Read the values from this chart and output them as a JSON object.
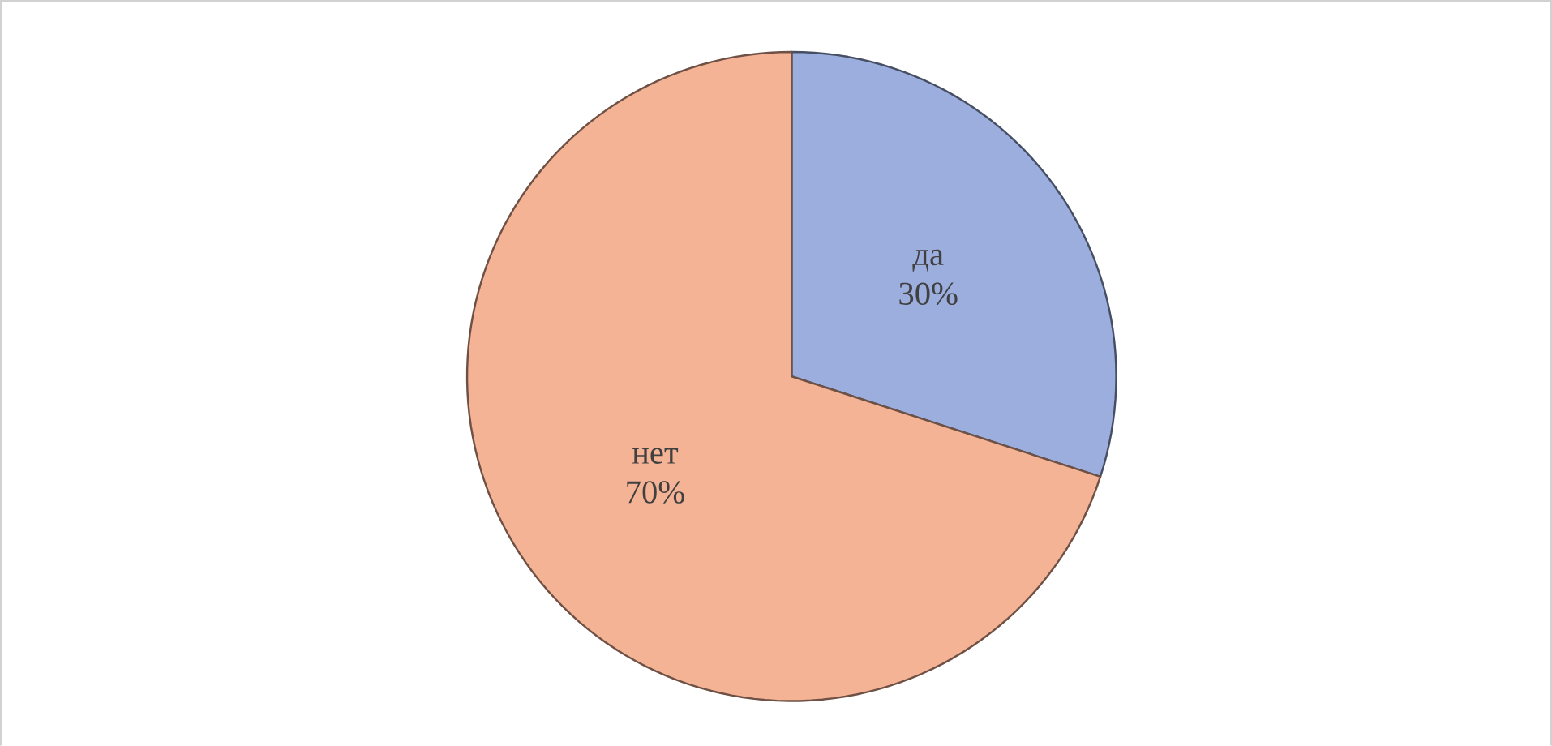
{
  "chart_data": {
    "type": "pie",
    "categories": [
      "да",
      "нет"
    ],
    "values": [
      30,
      70
    ],
    "colors": [
      "#9caede",
      "#f5b396"
    ],
    "value_labels": [
      "30%",
      "70%"
    ]
  }
}
